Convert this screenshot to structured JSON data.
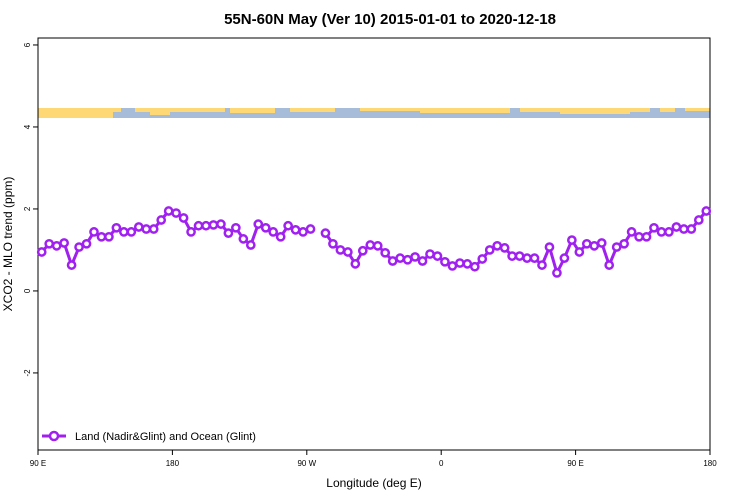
{
  "chart_data": {
    "type": "line",
    "title": "55N-60N May (Ver 10)   2015-01-01 to 2020-12-18",
    "xlabel": "Longitude (deg E)",
    "ylabel": "XCO2 - MLO trend (ppm)",
    "x": [
      92.5,
      97.5,
      102.5,
      107.5,
      112.5,
      117.5,
      122.5,
      127.5,
      132.5,
      137.5,
      142.5,
      147.5,
      152.5,
      157.5,
      162.5,
      167.5,
      172.5,
      177.5,
      182.5,
      187.5,
      192.5,
      197.5,
      202.5,
      207.5,
      212.5,
      217.5,
      222.5,
      227.5,
      232.5,
      237.5,
      242.5,
      247.5,
      252.5,
      257.5,
      262.5,
      267.5,
      272.5,
      277.5,
      282.5,
      287.5,
      292.5,
      297.5,
      302.5,
      307.5,
      312.5,
      317.5,
      322.5,
      327.5,
      332.5,
      337.5,
      342.5,
      347.5,
      352.5,
      357.5,
      362.5,
      367.5,
      372.5,
      377.5,
      382.5,
      387.5,
      392.5,
      397.5,
      402.5,
      407.5,
      412.5,
      417.5,
      422.5,
      427.5,
      432.5,
      437.5,
      442.5,
      447.5,
      452.5,
      457.5,
      462.5,
      467.5,
      472.5,
      477.5,
      482.5,
      487.5,
      492.5,
      497.5,
      502.5,
      507.5,
      512.5,
      517.5,
      522.5,
      527.5,
      532.5,
      537.5
    ],
    "series": [
      {
        "name": "Land (Nadir&Glint) and Ocean (Glint)",
        "color": "#a020f0",
        "values": [
          0.95,
          1.15,
          1.1,
          1.17,
          0.63,
          1.07,
          1.15,
          1.44,
          1.32,
          1.32,
          1.54,
          1.44,
          1.44,
          1.56,
          1.51,
          1.51,
          1.73,
          1.95,
          1.9,
          1.78,
          1.44,
          1.59,
          1.59,
          1.61,
          1.63,
          1.41,
          1.54,
          1.27,
          1.12,
          1.63,
          1.54,
          1.44,
          1.32,
          1.59,
          1.49,
          1.44,
          1.51,
          null,
          1.41,
          1.15,
          1.0,
          0.95,
          0.66,
          0.98,
          1.12,
          1.1,
          0.93,
          0.73,
          0.8,
          0.76,
          0.83,
          0.73,
          0.9,
          0.85,
          0.71,
          0.61,
          0.68,
          0.66,
          0.59,
          0.78,
          1.0,
          1.1,
          1.05,
          0.85,
          0.85,
          0.8,
          0.8,
          0.63,
          1.07,
          0.44,
          0.8,
          1.24,
          0.95,
          1.15,
          1.1,
          1.17,
          0.63,
          1.07,
          1.15,
          1.44,
          1.32,
          1.32,
          1.54,
          1.44,
          1.44,
          1.56,
          1.51,
          1.51,
          1.73,
          1.95
        ]
      }
    ],
    "xlim": [
      90,
      540
    ],
    "xticks": [
      {
        "value": 90,
        "label": "90 E"
      },
      180,
      {
        "value": 270,
        "label": "90 W"
      },
      {
        "value": 360,
        "label": "0"
      },
      {
        "value": 450,
        "label": "90 E"
      },
      {
        "value": 540,
        "label": "180"
      }
    ],
    "ylim": [
      -3.88,
      6.17
    ],
    "yticks": [
      -2,
      0,
      2,
      4,
      6
    ],
    "legend": "bottom-left"
  }
}
